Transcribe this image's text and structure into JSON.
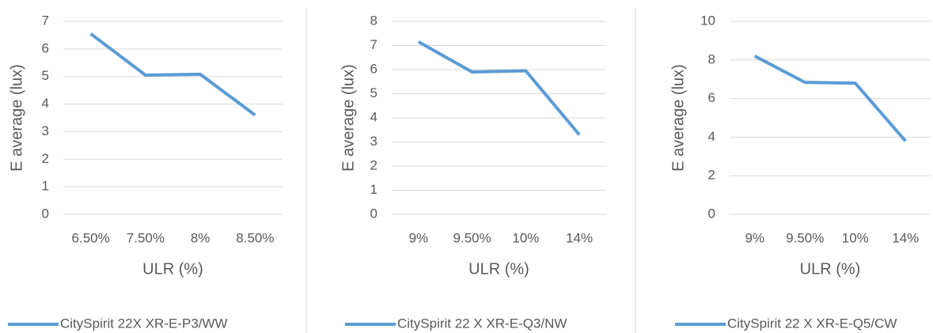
{
  "chart_data": [
    {
      "type": "line",
      "x_label": "ULR (%)",
      "y_label": "E average (lux)",
      "categories": [
        "6.50%",
        "7.50%",
        "8%",
        "8.50%"
      ],
      "series": [
        {
          "name": "CitySpirit 22X XR-E-P3/WW",
          "color": "#5b9bd5",
          "values": [
            6.55,
            5.05,
            5.08,
            3.6
          ]
        }
      ],
      "ylim": [
        0,
        7
      ],
      "yticks": [
        0,
        1,
        2,
        3,
        4,
        5,
        6,
        7
      ],
      "grid": true,
      "legend": "bottom"
    },
    {
      "type": "line",
      "x_label": "ULR (%)",
      "y_label": "E average (lux)",
      "categories": [
        "9%",
        "9.50%",
        "10%",
        "14%"
      ],
      "series": [
        {
          "name": "CitySpirit 22 X XR-E-Q3/NW",
          "color": "#5b9bd5",
          "values": [
            7.15,
            5.9,
            5.95,
            3.3
          ]
        }
      ],
      "ylim": [
        0,
        8
      ],
      "yticks": [
        0,
        1,
        2,
        3,
        4,
        5,
        6,
        7,
        8
      ],
      "grid": true,
      "legend": "bottom"
    },
    {
      "type": "line",
      "x_label": "ULR (%)",
      "y_label": "E average (lux)",
      "categories": [
        "9%",
        "9.50%",
        "10%",
        "14%"
      ],
      "series": [
        {
          "name": "CitySpirit 22 X XR-E-Q5/CW",
          "color": "#5b9bd5",
          "values": [
            8.2,
            6.84,
            6.8,
            3.8
          ]
        }
      ],
      "ylim": [
        0,
        10
      ],
      "yticks": [
        0,
        2,
        4,
        6,
        8,
        10
      ],
      "grid": true,
      "legend": "bottom"
    }
  ]
}
